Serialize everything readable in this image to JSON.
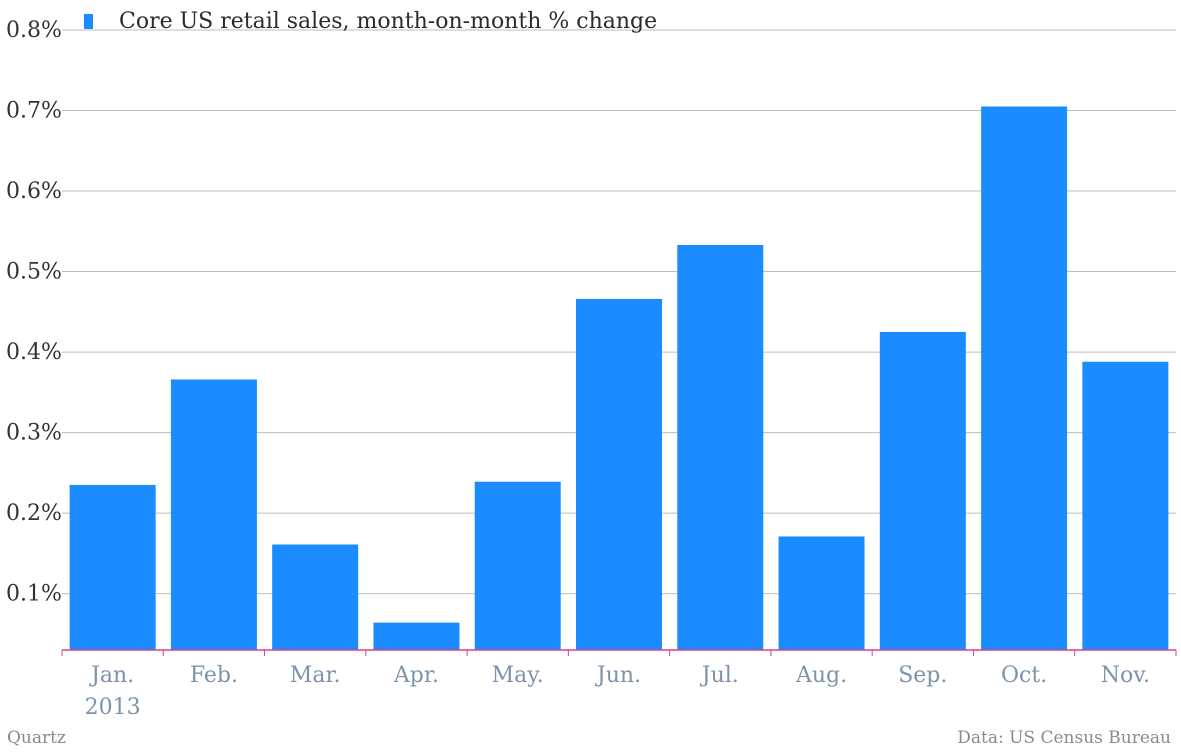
{
  "chart_data": {
    "type": "bar",
    "series": [
      {
        "name": "Core US retail sales, month-on-month % change",
        "values": [
          0.235,
          0.366,
          0.161,
          0.064,
          0.239,
          0.466,
          0.533,
          0.171,
          0.425,
          0.705,
          0.388
        ]
      }
    ],
    "categories": [
      "Jan.",
      "Feb.",
      "Mar.",
      "Apr.",
      "May.",
      "Jun.",
      "Jul.",
      "Aug.",
      "Sep.",
      "Oct.",
      "Nov."
    ],
    "category_sublabels": [
      "2013",
      "",
      "",
      "",
      "",
      "",
      "",
      "",
      "",
      "",
      ""
    ],
    "ylim": [
      0.03,
      0.8
    ],
    "yticks": [
      "0.1%",
      "0.2%",
      "0.3%",
      "0.4%",
      "0.5%",
      "0.6%",
      "0.7%",
      "0.8%"
    ],
    "ytick_values": [
      0.1,
      0.2,
      0.3,
      0.4,
      0.5,
      0.6,
      0.7,
      0.8
    ],
    "grid": true,
    "legend_position": "top-left",
    "bar_color": "#1a8cff",
    "gridline_color": "#bdbdbd",
    "axis_color": "#d9418f",
    "xtick_label_color": "#7d93ab",
    "ytick_label_color": "#333333"
  },
  "footer": {
    "source_brand": "Quartz",
    "data_source": "Data: US Census Bureau"
  }
}
